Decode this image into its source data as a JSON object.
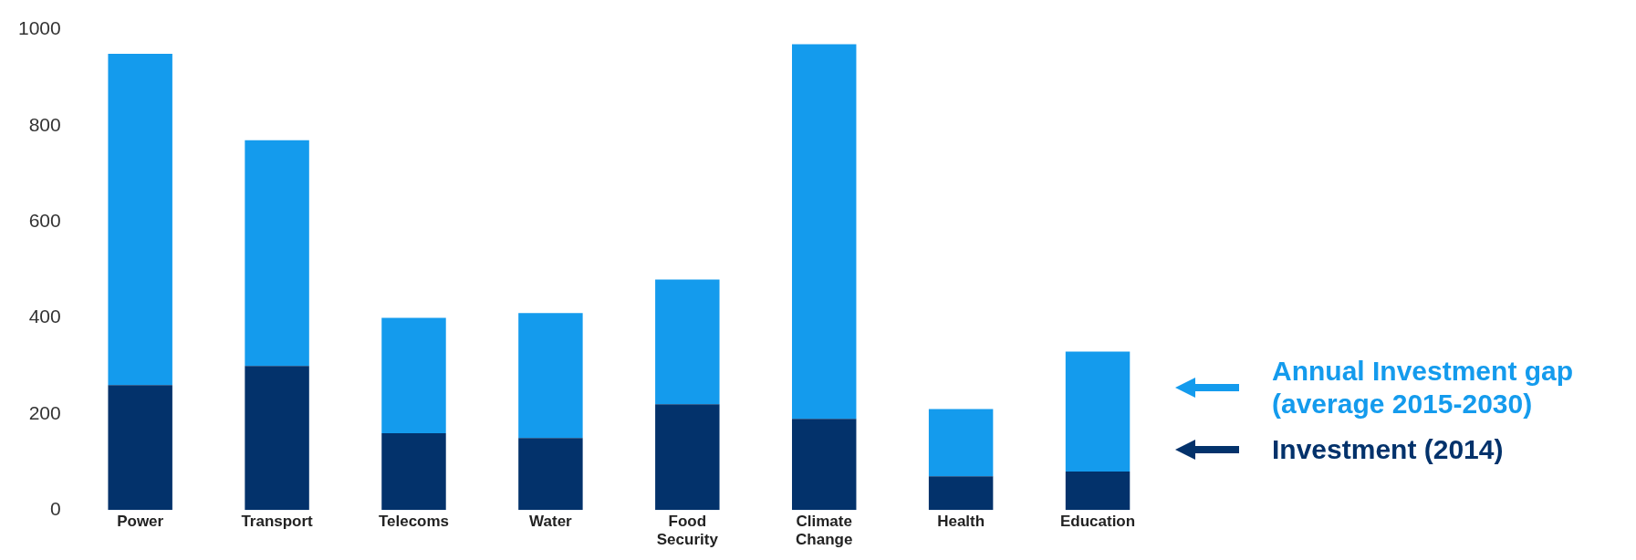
{
  "chart_data": {
    "type": "bar",
    "stacked": true,
    "categories": [
      "Power",
      "Transport",
      "Telecoms",
      "Water",
      "Food Security",
      "Climate Change",
      "Health",
      "Education"
    ],
    "series": [
      {
        "name": "Investment (2014)",
        "color": "#03326b",
        "values": [
          260,
          300,
          160,
          150,
          220,
          190,
          70,
          80
        ]
      },
      {
        "name": "Annual Investment gap (average 2015-2030)",
        "color": "#149bed",
        "values": [
          690,
          470,
          240,
          260,
          260,
          780,
          140,
          250
        ]
      }
    ],
    "ylim": [
      0,
      1000
    ],
    "yticks": [
      0,
      200,
      400,
      600,
      800,
      1000
    ],
    "grid": false,
    "legend": "right"
  }
}
